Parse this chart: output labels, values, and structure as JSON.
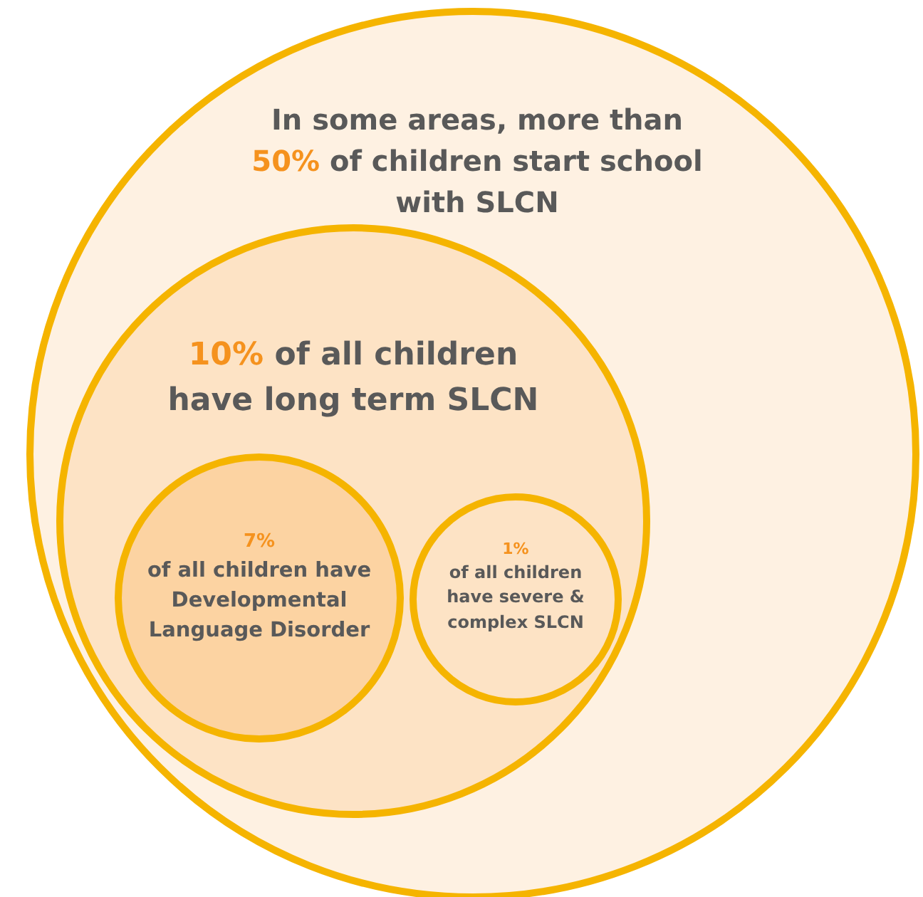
{
  "chart_data": {
    "type": "other",
    "annotations": [
      "In some areas, more than"
    ],
    "categories": [
      "of children start school with SLCN",
      "of all children have long term SLCN",
      "of all children have Developmental Language Disorder",
      "of all children have severe & complex SLCN"
    ],
    "values": [
      50,
      10,
      7,
      1
    ],
    "value_labels": [
      "50%",
      "10%",
      "7%",
      "1%"
    ],
    "colors": [
      "#fef1e2",
      "#fde3c5",
      "#fcd3a2",
      "#fde3c5"
    ]
  }
}
